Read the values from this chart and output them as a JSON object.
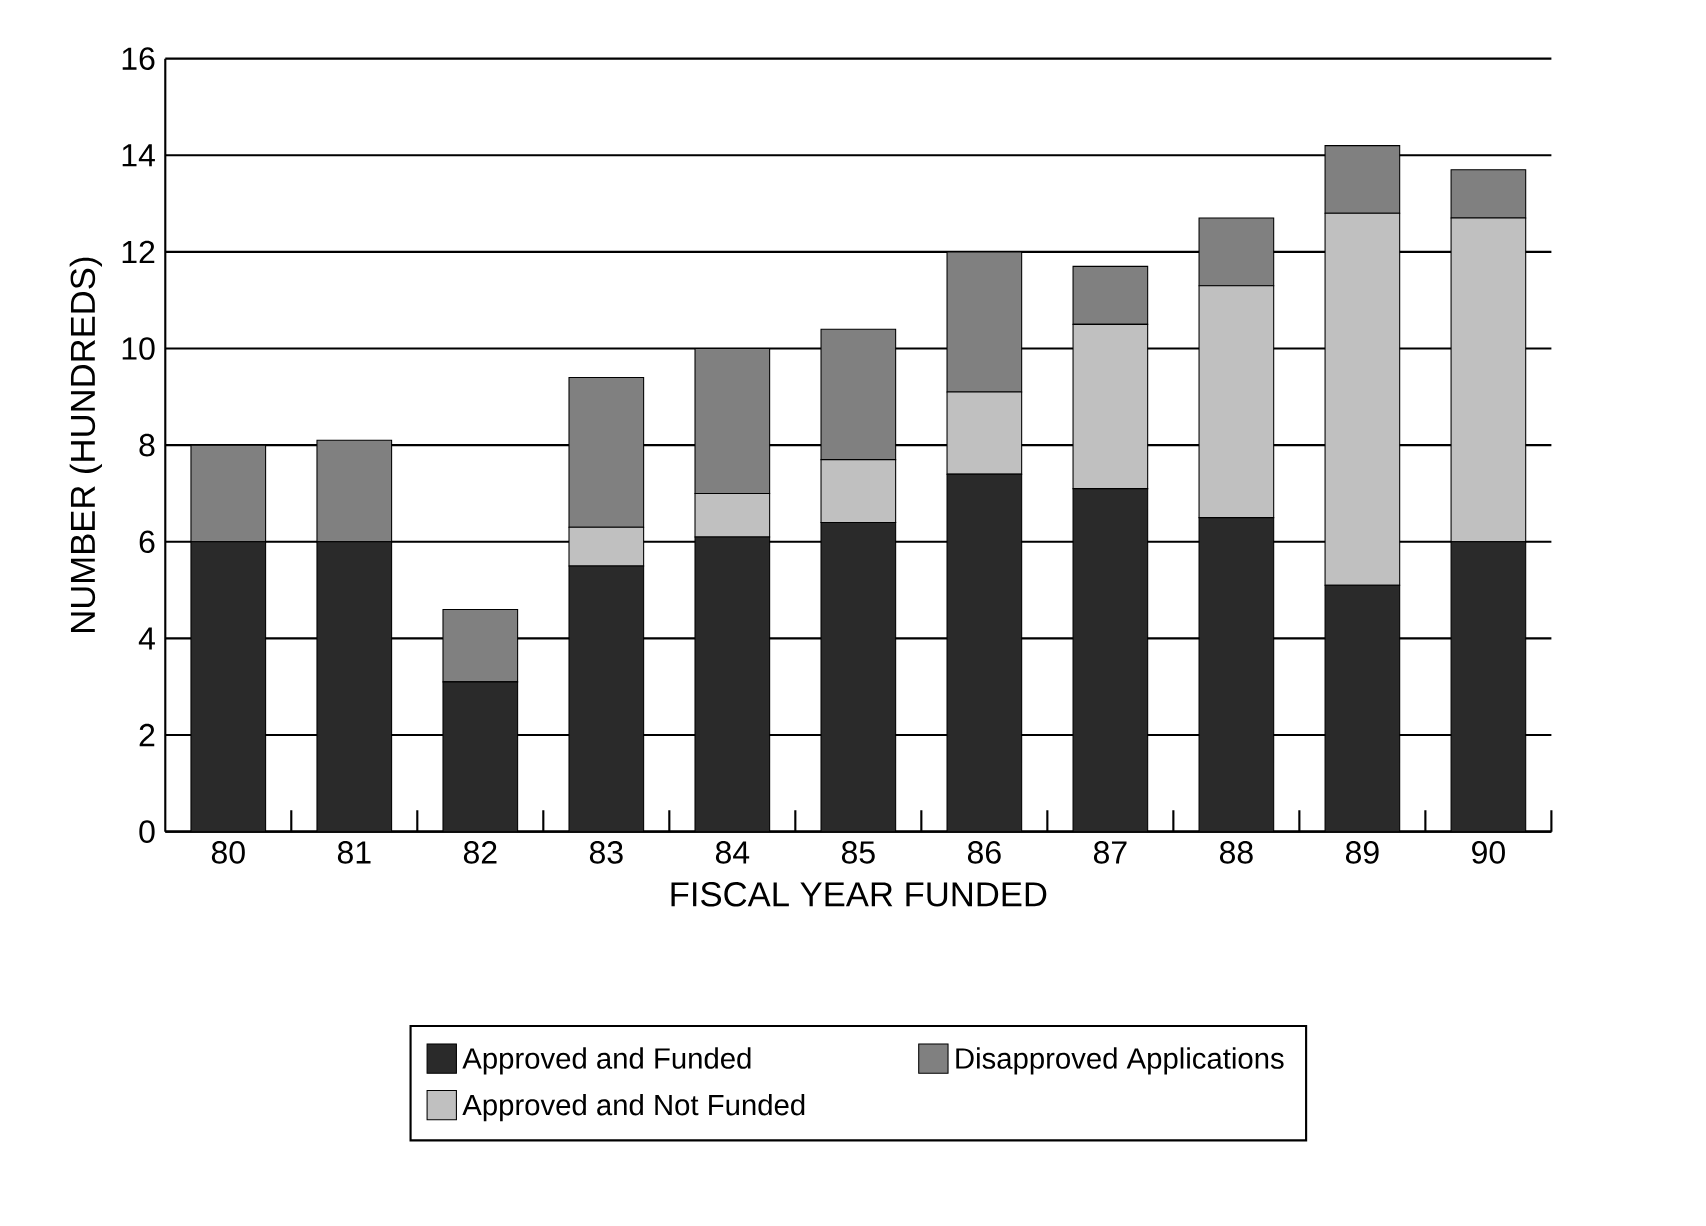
{
  "chart_data": {
    "type": "bar",
    "stacked": true,
    "xlabel": "FISCAL YEAR FUNDED",
    "ylabel": "NUMBER (HUNDREDS)",
    "categories": [
      "80",
      "81",
      "82",
      "83",
      "84",
      "85",
      "86",
      "87",
      "88",
      "89",
      "90"
    ],
    "ylim": [
      0,
      16
    ],
    "yticks": [
      0,
      2,
      4,
      6,
      8,
      10,
      12,
      14,
      16
    ],
    "grid": "y",
    "legend": "bottom",
    "series": [
      {
        "name": "Approved and Funded",
        "color": "#2a2a2a",
        "values": [
          6,
          6,
          3.1,
          5.5,
          6.1,
          6.4,
          7.4,
          7.1,
          6.5,
          5.1,
          6.0
        ]
      },
      {
        "name": "Approved and Not Funded",
        "color": "#c0c0c0",
        "values": [
          0,
          0,
          0,
          0.8,
          0.9,
          1.3,
          1.7,
          3.4,
          4.8,
          7.7,
          6.7
        ]
      },
      {
        "name": "Disapproved Applications",
        "color": "#808080",
        "values": [
          2,
          2.1,
          1.5,
          3.1,
          3.0,
          2.7,
          2.9,
          1.2,
          1.4,
          1.4,
          1.0
        ]
      }
    ]
  }
}
